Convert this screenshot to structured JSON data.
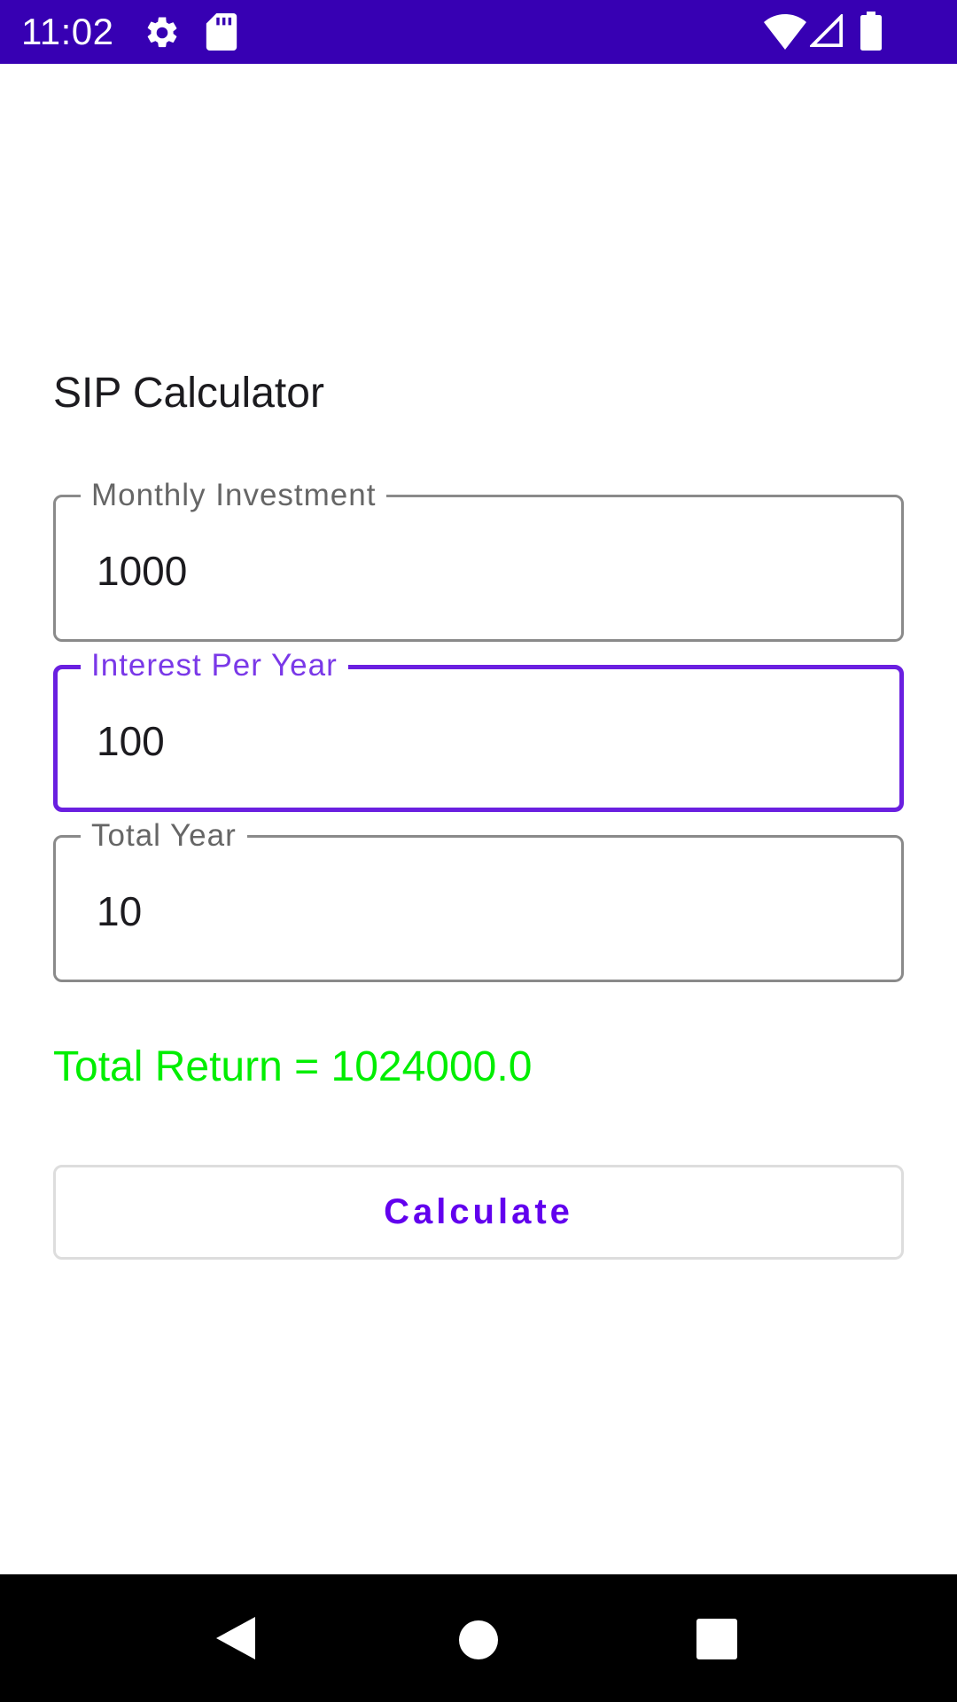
{
  "status_bar": {
    "time": "11:02",
    "background_color": "#3700b3",
    "left_icons": [
      "gear-icon",
      "sd-card-icon"
    ],
    "right_icons": [
      "wifi-icon",
      "cell-signal-icon",
      "battery-icon"
    ]
  },
  "app": {
    "title": "SIP Calculator"
  },
  "form": {
    "monthly_investment": {
      "label": "Monthly Investment",
      "value": "1000"
    },
    "interest_per_year": {
      "label": "Interest Per Year",
      "value": "100",
      "focused": true
    },
    "total_year": {
      "label": "Total Year",
      "value": "10"
    }
  },
  "result": {
    "text": "Total Return = 1024000.0",
    "color": "#00ee00"
  },
  "actions": {
    "calculate_label": "Calculate"
  },
  "accent_color": "#6200ee",
  "nav_bar": {
    "buttons": [
      "back-icon",
      "home-icon",
      "recents-icon"
    ]
  }
}
